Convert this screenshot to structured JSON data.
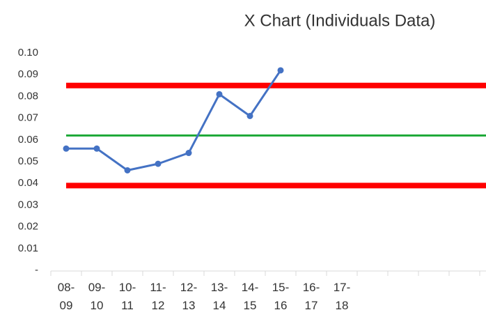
{
  "chart_data": {
    "type": "line",
    "title": "X Chart (Individuals Data)",
    "categories": [
      "08-09",
      "09-10",
      "10-11",
      "11-12",
      "12-13",
      "13-14",
      "14-15",
      "15-16",
      "16-17",
      "17-18",
      null,
      null,
      null,
      null,
      null
    ],
    "series": [
      {
        "color": "#4472c4",
        "values": [
          0.056,
          0.056,
          0.046,
          0.049,
          0.054,
          0.081,
          0.071,
          0.092,
          null,
          null,
          null,
          null,
          null,
          null,
          null
        ]
      },
      {
        "color": "#ff0000",
        "values": [
          0.085,
          0.085,
          0.085,
          0.085,
          0.085,
          0.085,
          0.085,
          0.085,
          0.085,
          0.085,
          0.085,
          0.085,
          0.085,
          0.085,
          0.085
        ]
      },
      {
        "color": "#1faa3a",
        "values": [
          0.062,
          0.062,
          0.062,
          0.062,
          0.062,
          0.062,
          0.062,
          0.062,
          0.062,
          0.062,
          0.062,
          0.062,
          0.062,
          0.062,
          0.062
        ]
      },
      {
        "color": "#ff0000",
        "values": [
          0.039,
          0.039,
          0.039,
          0.039,
          0.039,
          0.039,
          0.039,
          0.039,
          0.039,
          0.039,
          0.039,
          0.039,
          0.039,
          0.039,
          0.039
        ]
      }
    ],
    "ylim": [
      0,
      0.1
    ],
    "yticks": [
      {
        "value": 0,
        "label": "-"
      },
      0.01,
      0.02,
      0.03,
      0.04,
      0.05,
      0.06,
      0.07,
      0.08,
      0.09,
      {
        "value": 0.1,
        "label": "0.10"
      }
    ]
  }
}
